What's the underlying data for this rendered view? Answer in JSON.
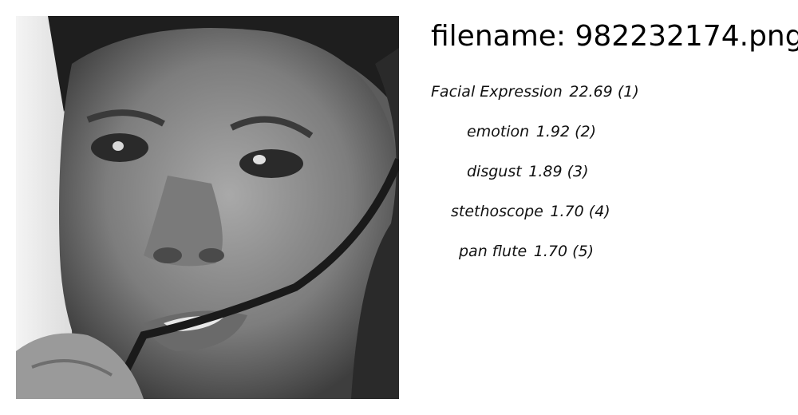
{
  "image_title": "filename: 982232174.png",
  "photo": {
    "subject": "grayscale close-up face photo"
  },
  "predictions": [
    {
      "label": "Facial Expression",
      "score": "22.69",
      "rank": "(1)"
    },
    {
      "label": "emotion",
      "score": "1.92",
      "rank": "(2)"
    },
    {
      "label": "disgust",
      "score": "1.89",
      "rank": "(3)"
    },
    {
      "label": "stethoscope",
      "score": "1.70",
      "rank": "(4)"
    },
    {
      "label": "pan flute",
      "score": "1.70",
      "rank": "(5)"
    }
  ]
}
